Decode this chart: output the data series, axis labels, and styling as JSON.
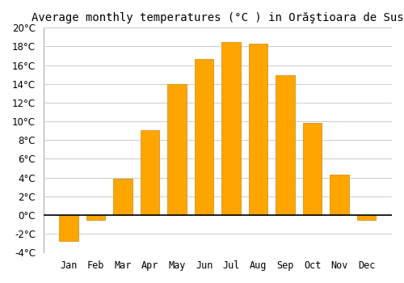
{
  "title": "Average monthly temperatures (°C ) in Orăştioara de Sus",
  "months": [
    "Jan",
    "Feb",
    "Mar",
    "Apr",
    "May",
    "Jun",
    "Jul",
    "Aug",
    "Sep",
    "Oct",
    "Nov",
    "Dec"
  ],
  "values": [
    -2.8,
    -0.5,
    3.9,
    9.1,
    14.0,
    16.7,
    18.5,
    18.3,
    14.9,
    9.8,
    4.3,
    -0.5
  ],
  "bar_color": "#FFA500",
  "bar_edge_color": "#CC8800",
  "background_color": "#ffffff",
  "grid_color": "#cccccc",
  "ylim": [
    -4,
    20
  ],
  "yticks": [
    -4,
    -2,
    0,
    2,
    4,
    6,
    8,
    10,
    12,
    14,
    16,
    18,
    20
  ],
  "title_fontsize": 10,
  "tick_fontsize": 8.5,
  "zero_line_color": "#000000"
}
